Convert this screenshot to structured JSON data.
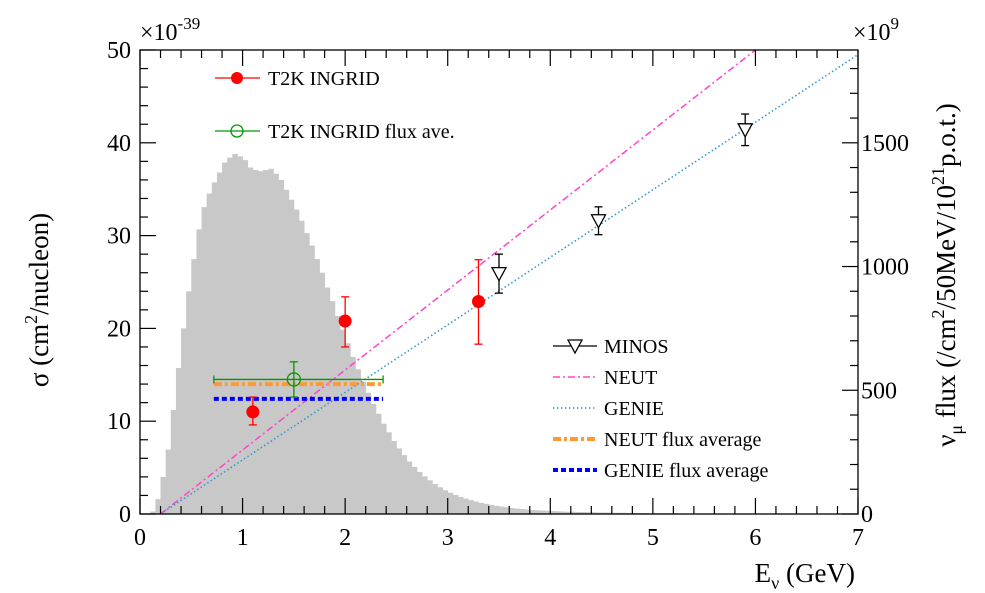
{
  "chart_data": {
    "type": "scatter",
    "xlabel": {
      "main": "E",
      "sub": "ν",
      "unit": " (GeV)"
    },
    "ylabel": {
      "pre": "σ (cm",
      "sup": "2",
      "post": "/nucleon)"
    },
    "y2label": {
      "pre": "ν",
      "sub": "μ",
      "mid": " flux (/cm",
      "sup1": "2",
      "mid2": "/50MeV/10",
      "sup2": "21",
      "post": "p.o.t.)"
    },
    "y_multiplier": {
      "base": "×10",
      "exp": "-39"
    },
    "y2_multiplier": {
      "base": "×10",
      "exp": "9"
    },
    "xlim": [
      0,
      7
    ],
    "ylim": [
      0,
      50
    ],
    "y2lim": [
      0,
      1875
    ],
    "x_ticks": [
      "0",
      "1",
      "2",
      "3",
      "4",
      "5",
      "6",
      "7"
    ],
    "y_ticks": [
      "0",
      "10",
      "20",
      "30",
      "40",
      "50"
    ],
    "y2_ticks": [
      "0",
      "500",
      "1000",
      "1500"
    ],
    "legend_top": [
      {
        "label": "T2K INGRID",
        "color": "#ff0000",
        "marker": "filled-circle"
      },
      {
        "label": "T2K INGRID flux ave.",
        "color": "#009900",
        "marker": "open-circle"
      }
    ],
    "legend_bottom": [
      {
        "label": "MINOS",
        "color": "#000000",
        "marker": "open-triangle-down"
      },
      {
        "label": "NEUT",
        "color": "#ff44cc",
        "style": "dash-dot"
      },
      {
        "label": "GENIE",
        "color": "#3399cc",
        "style": "dotted"
      },
      {
        "label": "NEUT flux average",
        "color": "#ff9933",
        "style": "thick-dash-dot"
      },
      {
        "label": "GENIE flux average",
        "color": "#0000ff",
        "style": "thick-dash"
      }
    ],
    "series": [
      {
        "name": "T2K INGRID",
        "points": [
          {
            "x": 1.1,
            "y": 11.0,
            "ylo": 9.6,
            "yhi": 12.6
          },
          {
            "x": 2.0,
            "y": 20.8,
            "ylo": 18.0,
            "yhi": 23.4
          },
          {
            "x": 3.3,
            "y": 22.9,
            "ylo": 18.3,
            "yhi": 27.4
          }
        ]
      },
      {
        "name": "T2K INGRID flux ave.",
        "points": [
          {
            "x": 1.5,
            "y": 14.5,
            "xlo": 0.72,
            "xhi": 2.37,
            "ylo": 12.6,
            "yhi": 16.4
          }
        ]
      },
      {
        "name": "MINOS",
        "points": [
          {
            "x": 3.5,
            "y": 25.9,
            "ylo": 23.8,
            "yhi": 28.0
          },
          {
            "x": 4.47,
            "y": 31.6,
            "ylo": 30.1,
            "yhi": 33.1
          },
          {
            "x": 5.9,
            "y": 41.4,
            "ylo": 39.7,
            "yhi": 43.1
          }
        ]
      },
      {
        "name": "NEUT",
        "line": [
          {
            "x": 0.2,
            "y": 0
          },
          {
            "x": 6.0,
            "y": 50.0
          }
        ]
      },
      {
        "name": "GENIE",
        "line": [
          {
            "x": 0.2,
            "y": 0
          },
          {
            "x": 7.0,
            "y": 49.5
          }
        ]
      },
      {
        "name": "NEUT flux average",
        "x": [
          0.72,
          2.37
        ],
        "y": 14.0
      },
      {
        "name": "GENIE flux average",
        "x": [
          0.72,
          2.37
        ],
        "y": 12.4
      },
      {
        "name": "flux histogram",
        "bin_width": 0.05,
        "peaks_y2": [
          {
            "x": 0.85,
            "y": 1340
          },
          {
            "x": 0.92,
            "y": 1445
          },
          {
            "x": 1.0,
            "y": 1455
          },
          {
            "x": 1.15,
            "y": 1390
          },
          {
            "x": 1.25,
            "y": 1395
          }
        ],
        "y2_values": [
          0,
          0,
          10,
          60,
          150,
          260,
          420,
          590,
          750,
          900,
          1030,
          1150,
          1240,
          1295,
          1340,
          1380,
          1420,
          1440,
          1455,
          1445,
          1430,
          1400,
          1390,
          1385,
          1390,
          1395,
          1375,
          1350,
          1310,
          1270,
          1230,
          1185,
          1135,
          1085,
          1030,
          975,
          915,
          860,
          800,
          745,
          690,
          635,
          585,
          535,
          490,
          445,
          405,
          365,
          330,
          295,
          265,
          238,
          212,
          190,
          170,
          152,
          136,
          121,
          108,
          96,
          86,
          77,
          69,
          62,
          56,
          50,
          45,
          41,
          37,
          33,
          30,
          27,
          24,
          22,
          20,
          18,
          16,
          15,
          14,
          13,
          12,
          11,
          10,
          9,
          9,
          8,
          8,
          7,
          7,
          6,
          6,
          6,
          5,
          5,
          5,
          4,
          4,
          4,
          4,
          3,
          3,
          3,
          3,
          3,
          3,
          2,
          2,
          2,
          2,
          2,
          2,
          2,
          2,
          2,
          2,
          1,
          1,
          1,
          1,
          1,
          1,
          1,
          1,
          1,
          1,
          1,
          1,
          1,
          1,
          1,
          1,
          1,
          1,
          1,
          1,
          1,
          1,
          1,
          1,
          1,
          1,
          1,
          1,
          0
        ]
      }
    ],
    "colors": {
      "histogram": "#c8c8c8",
      "frame": "#000000"
    }
  }
}
